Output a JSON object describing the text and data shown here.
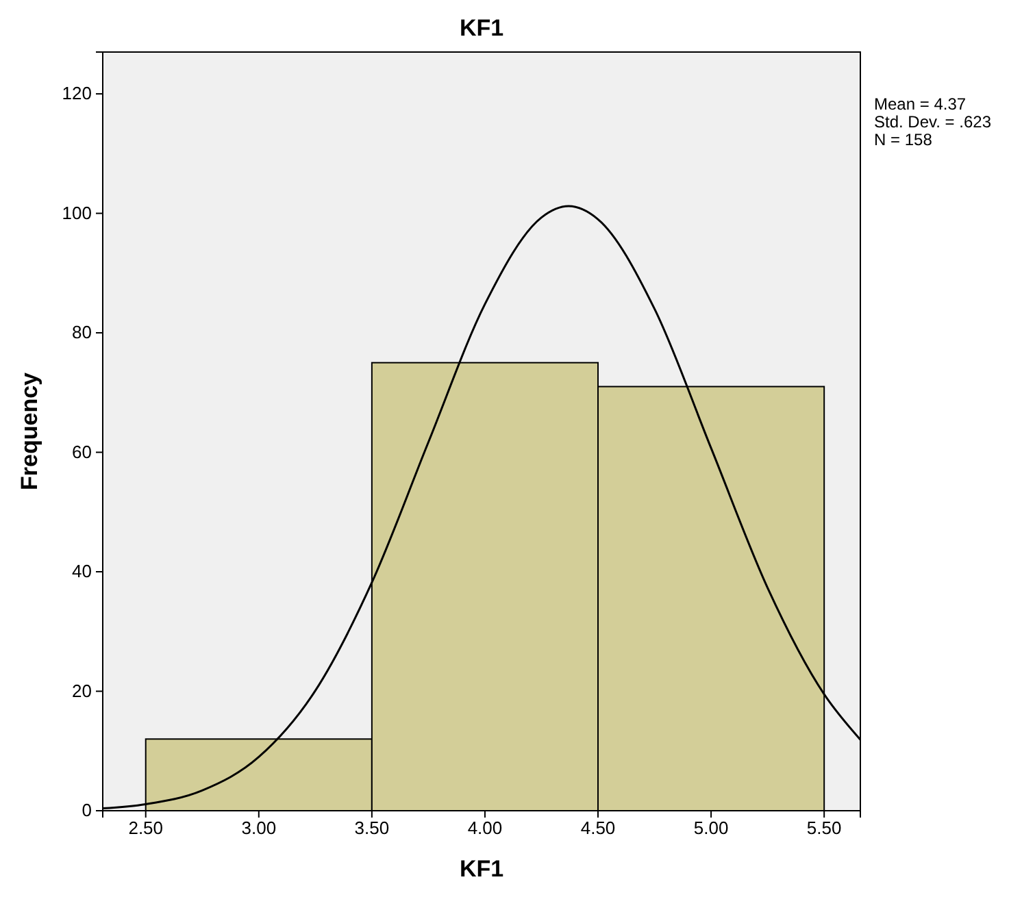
{
  "chart_data": {
    "type": "histogram",
    "title": "KF1",
    "xlabel": "KF1",
    "ylabel": "Frequency",
    "bins": [
      2.5,
      3.5,
      4.5,
      5.5
    ],
    "values": [
      12,
      75,
      71
    ],
    "color": "#d3ce98",
    "series": [
      {
        "type": "line",
        "color": "#000000",
        "x": [
          2.31,
          2.5,
          2.75,
          3.0,
          3.25,
          3.5,
          3.75,
          4.0,
          4.25,
          4.37,
          4.5,
          4.75,
          5.0,
          5.25,
          5.5,
          5.66
        ],
        "values": [
          0.4,
          1.1,
          3.4,
          9.0,
          20.1,
          38.2,
          61.7,
          84.8,
          99.3,
          101.2,
          99.0,
          84.0,
          60.7,
          37.3,
          19.5,
          11.9
        ]
      }
    ],
    "xlim": [
      2.31,
      5.66
    ],
    "ylim": [
      0,
      127
    ],
    "xticks": [
      {
        "value": 2.5,
        "label": "2.50"
      },
      {
        "value": 3,
        "label": "3.00"
      },
      {
        "value": 3.5,
        "label": "3.50"
      },
      {
        "value": 4,
        "label": "4.00"
      },
      {
        "value": 4.5,
        "label": "4.50"
      },
      {
        "value": 5,
        "label": "5.00"
      },
      {
        "value": 5.5,
        "label": "5.50"
      }
    ],
    "yticks": [
      0,
      20,
      40,
      60,
      80,
      100,
      120
    ],
    "grid": false,
    "annotations": [
      "Mean = 4.37",
      "Std. Dev. = .623",
      "N = 158"
    ]
  }
}
